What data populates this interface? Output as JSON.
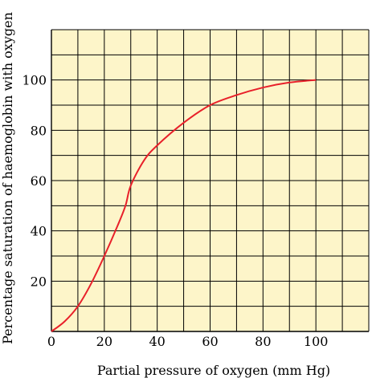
{
  "chart_data": {
    "type": "line",
    "title": "",
    "xlabel": "Partial pressure of oxygen (mm Hg)",
    "ylabel": "Percentage saturation of haemoglobin with oxygen",
    "xlim": [
      0,
      120
    ],
    "ylim": [
      0,
      120
    ],
    "x_ticks": [
      "0",
      "20",
      "40",
      "60",
      "80",
      "100"
    ],
    "y_ticks": [
      "20",
      "40",
      "60",
      "80",
      "100"
    ],
    "x_grid_step": 10,
    "y_grid_step": 10,
    "grid": true,
    "plot_background": "#fdf5c9",
    "grid_color": "#000000",
    "series": [
      {
        "color": "#e8202a",
        "x": [
          0,
          5,
          10,
          15,
          20,
          25,
          28,
          30,
          35,
          40,
          50,
          60,
          70,
          80,
          90,
          100
        ],
        "y": [
          0,
          4,
          10,
          19,
          30,
          42,
          50,
          58,
          68,
          74,
          83,
          90,
          94,
          97,
          99,
          100
        ]
      }
    ]
  }
}
